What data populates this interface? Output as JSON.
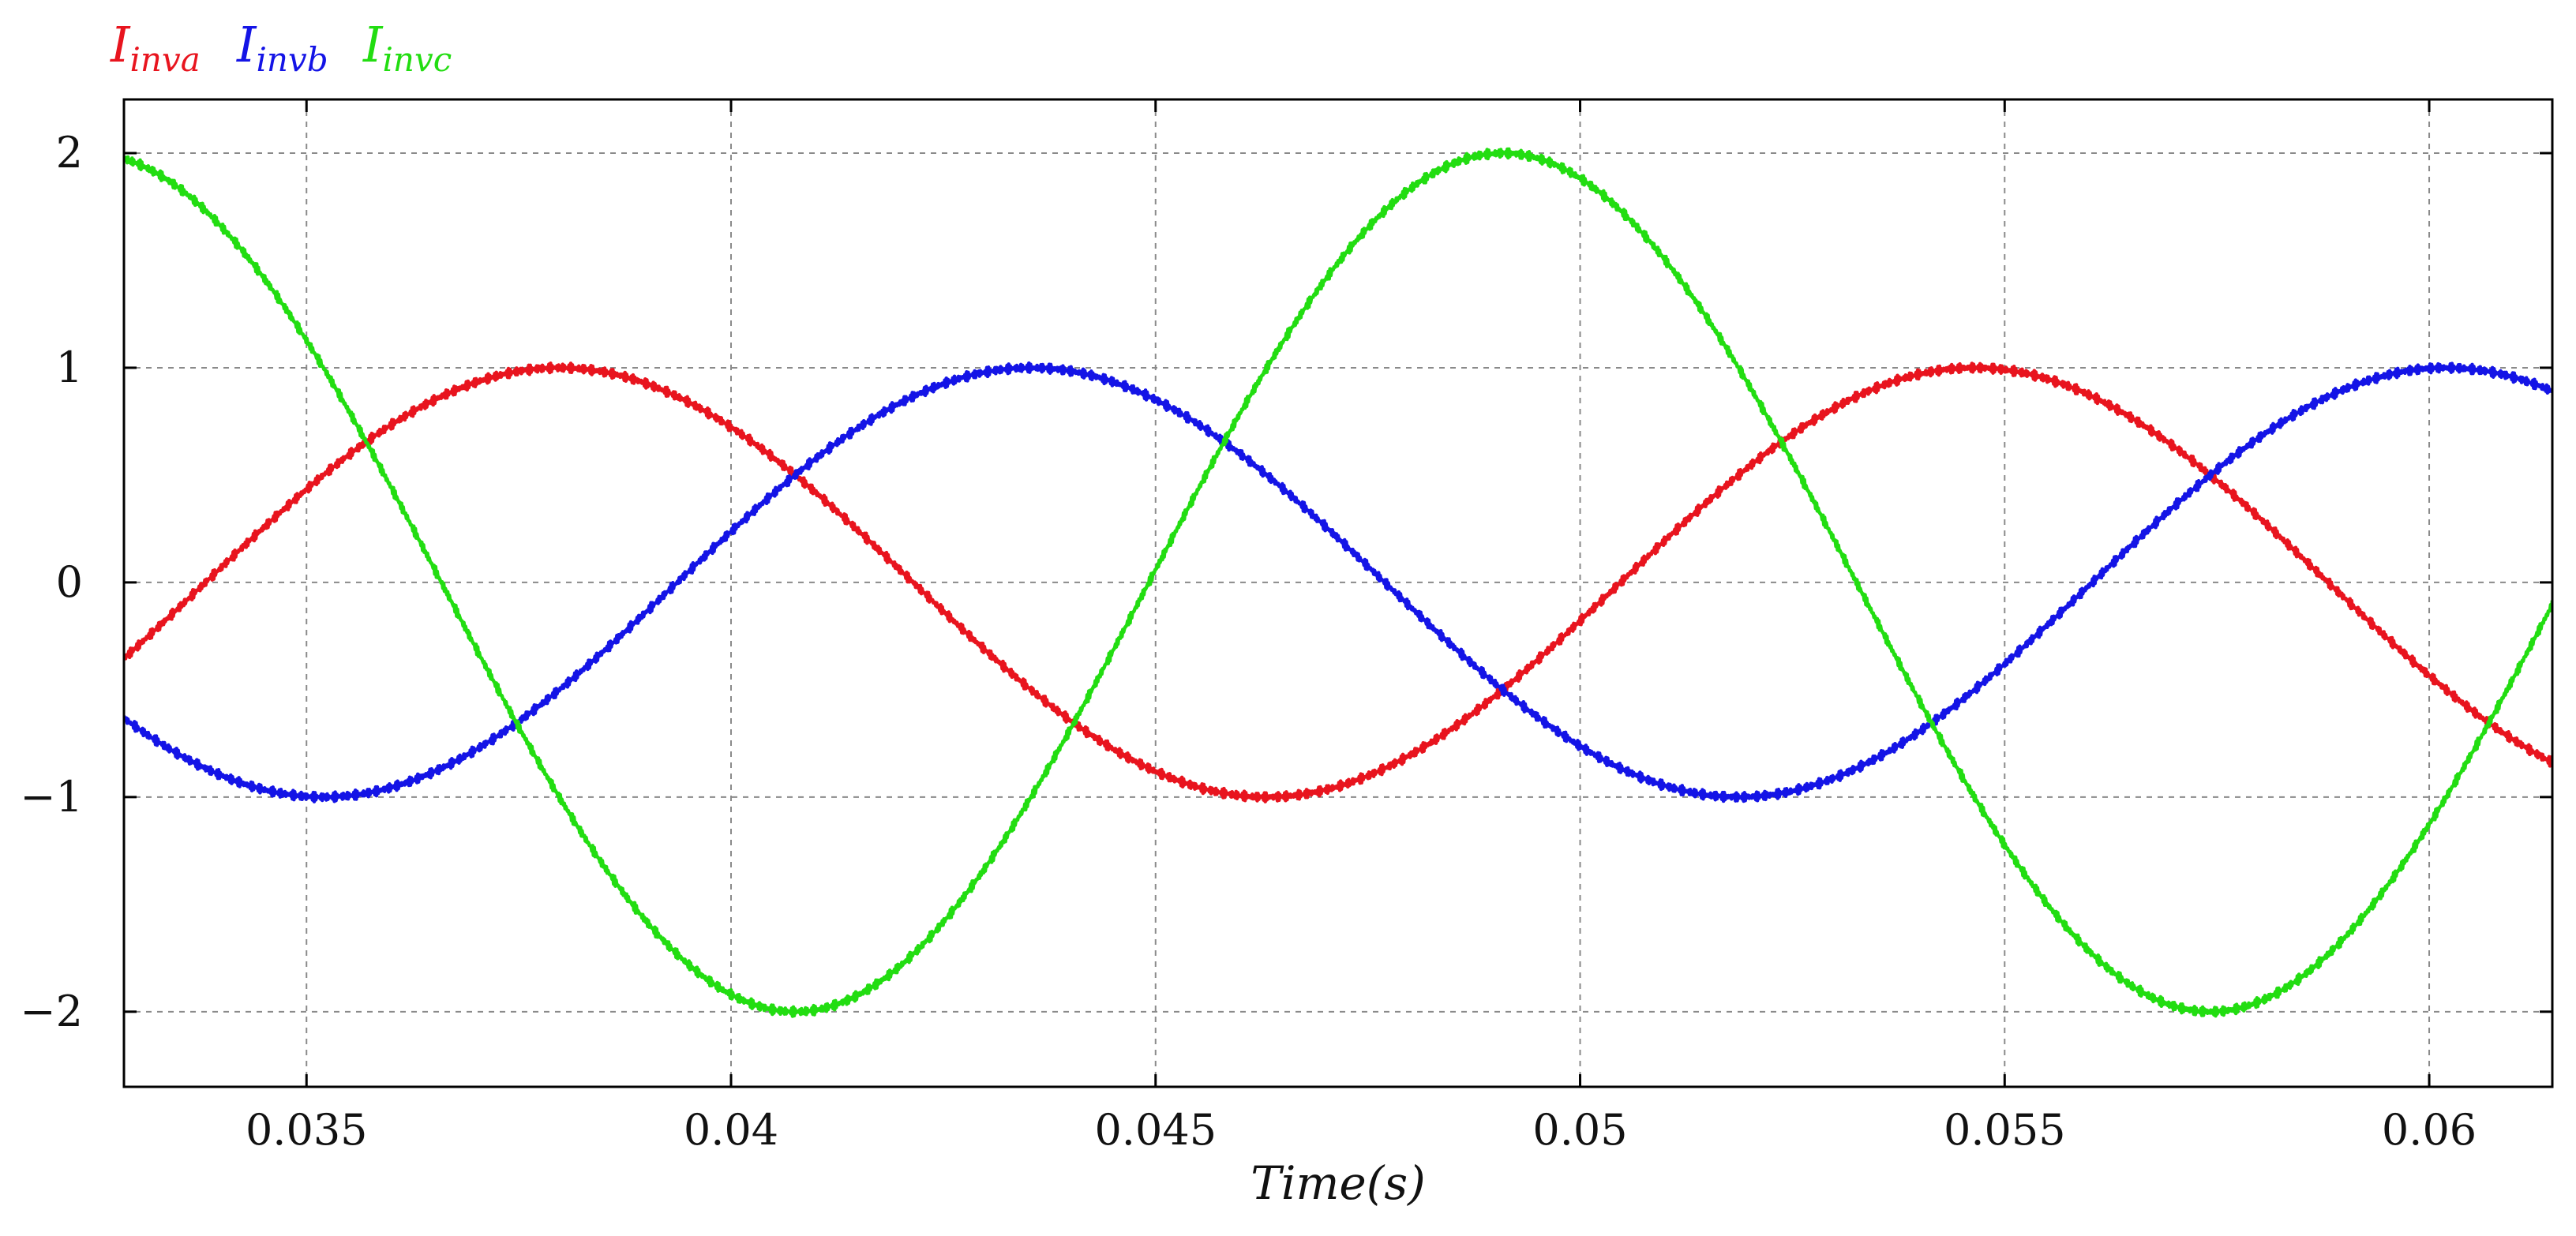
{
  "chart_data": {
    "type": "line",
    "title": "",
    "xlabel": "Time(s)",
    "ylabel": "",
    "xlim": [
      0.03285,
      0.06145
    ],
    "ylim": [
      -2.35,
      2.25
    ],
    "grid": true,
    "legend": "top-left",
    "x_ticks": [
      0.035,
      0.04,
      0.045,
      0.05,
      0.055,
      0.06
    ],
    "x_tick_labels": [
      "0.035",
      "0.04",
      "0.045",
      "0.05",
      "0.055",
      "0.06"
    ],
    "y_ticks": [
      2,
      1,
      0,
      -1,
      -2
    ],
    "y_tick_labels": [
      "2",
      "1",
      "0",
      "−1",
      "−2"
    ],
    "series": [
      {
        "name": "I_inva",
        "label_main": "I",
        "label_sub": "inva",
        "color": "#e8141e",
        "amplitude": 1,
        "phase_deg": -10.3
      },
      {
        "name": "I_invb",
        "label_main": "I",
        "label_sub": "invb",
        "color": "#1414e6",
        "amplitude": 1,
        "phase_deg": -130.3
      },
      {
        "name": "I_invc",
        "label_main": "I",
        "label_sub": "invc",
        "color": "#22dd11",
        "amplitude": 2,
        "phase_deg": 109.7
      }
    ],
    "frequency_hz": 60
  }
}
